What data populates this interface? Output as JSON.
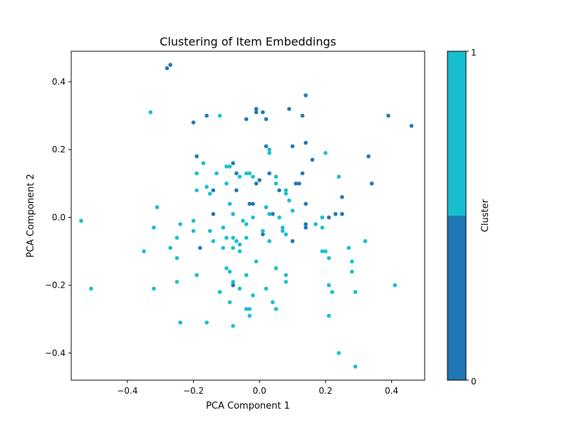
{
  "chart_data": {
    "type": "scatter",
    "title": "Clustering of Item Embeddings",
    "xlabel": "PCA Component 1",
    "ylabel": "PCA Component 2",
    "xlim": [
      -0.57,
      0.5
    ],
    "ylim": [
      -0.48,
      0.49
    ],
    "xticks": [
      -0.4,
      -0.2,
      0.0,
      0.2,
      0.4
    ],
    "xtick_labels": [
      "−0.4",
      "−0.2",
      "0.0",
      "0.2",
      "0.4"
    ],
    "yticks": [
      -0.4,
      -0.2,
      0.0,
      0.2,
      0.4
    ],
    "ytick_labels": [
      "−0.4",
      "−0.2",
      "0.0",
      "0.2",
      "0.4"
    ],
    "grid": false,
    "colorbar": {
      "label": "Cluster",
      "tick_labels": [
        "0",
        "1"
      ],
      "colors": [
        "#1f77b4",
        "#17becf"
      ]
    },
    "series": [
      {
        "cluster": 0,
        "color": "#1f77b4",
        "points": [
          [
            -0.28,
            0.44
          ],
          [
            -0.27,
            0.45
          ],
          [
            -0.2,
            0.28
          ],
          [
            -0.16,
            0.3
          ],
          [
            -0.04,
            0.29
          ],
          [
            -0.01,
            0.32
          ],
          [
            -0.01,
            0.31
          ],
          [
            0.01,
            0.31
          ],
          [
            0.02,
            0.29
          ],
          [
            0.09,
            0.32
          ],
          [
            0.13,
            0.3
          ],
          [
            0.14,
            0.36
          ],
          [
            0.39,
            0.3
          ],
          [
            0.46,
            0.27
          ],
          [
            -0.19,
            0.18
          ],
          [
            0.02,
            0.21
          ],
          [
            0.1,
            0.21
          ],
          [
            0.14,
            0.22
          ],
          [
            0.33,
            0.18
          ],
          [
            0.16,
            0.17
          ],
          [
            -0.08,
            0.16
          ],
          [
            -0.07,
            0.13
          ],
          [
            0.03,
            0.13
          ],
          [
            0.13,
            0.13
          ],
          [
            0.0,
            0.11
          ],
          [
            -0.01,
            0.1
          ],
          [
            0.11,
            0.1
          ],
          [
            0.12,
            0.1
          ],
          [
            0.34,
            0.1
          ],
          [
            -0.14,
            0.08
          ],
          [
            -0.07,
            0.08
          ],
          [
            0.06,
            0.08
          ],
          [
            0.25,
            0.06
          ],
          [
            -0.03,
            0.04
          ],
          [
            -0.02,
            0.04
          ],
          [
            0.14,
            0.04
          ],
          [
            -0.14,
            0.01
          ],
          [
            0.04,
            0.01
          ],
          [
            0.23,
            0.01
          ],
          [
            0.25,
            0.01
          ],
          [
            0.14,
            -0.02
          ],
          [
            0.21,
            0.0
          ],
          [
            0.14,
            -0.03
          ],
          [
            0.01,
            -0.05
          ],
          [
            0.1,
            -0.07
          ],
          [
            -0.18,
            -0.09
          ],
          [
            -0.08,
            -0.2
          ]
        ]
      },
      {
        "cluster": 1,
        "color": "#17becf",
        "points": [
          [
            -0.33,
            0.31
          ],
          [
            -0.12,
            0.3
          ],
          [
            0.03,
            0.19
          ],
          [
            0.03,
            0.2
          ],
          [
            0.2,
            0.19
          ],
          [
            -0.17,
            0.16
          ],
          [
            -0.1,
            0.15
          ],
          [
            -0.09,
            0.15
          ],
          [
            -0.19,
            0.13
          ],
          [
            -0.13,
            0.13
          ],
          [
            -0.06,
            0.12
          ],
          [
            -0.04,
            0.13
          ],
          [
            -0.03,
            0.13
          ],
          [
            -0.02,
            0.12
          ],
          [
            0.05,
            0.12
          ],
          [
            0.24,
            0.12
          ],
          [
            -0.1,
            0.1
          ],
          [
            -0.16,
            0.09
          ],
          [
            0.05,
            0.1
          ],
          [
            0.08,
            0.08
          ],
          [
            -0.19,
            0.08
          ],
          [
            -0.15,
            0.07
          ],
          [
            0.08,
            0.07
          ],
          [
            0.09,
            0.05
          ],
          [
            -0.31,
            0.03
          ],
          [
            -0.09,
            0.04
          ],
          [
            0.02,
            0.03
          ],
          [
            -0.08,
            0.01
          ],
          [
            0.03,
            0.01
          ],
          [
            0.06,
            0.0
          ],
          [
            0.1,
            0.02
          ],
          [
            0.19,
            0.0
          ],
          [
            0.19,
            0.0
          ],
          [
            -0.2,
            -0.01
          ],
          [
            -0.54,
            -0.01
          ],
          [
            -0.05,
            -0.01
          ],
          [
            -0.04,
            -0.02
          ],
          [
            -0.02,
            0.0
          ],
          [
            0.17,
            -0.02
          ],
          [
            -0.24,
            -0.02
          ],
          [
            -0.32,
            -0.03
          ],
          [
            -0.11,
            -0.03
          ],
          [
            0.07,
            -0.03
          ],
          [
            0.19,
            -0.03
          ],
          [
            -0.15,
            -0.04
          ],
          [
            -0.2,
            -0.04
          ],
          [
            0.07,
            -0.04
          ],
          [
            0.08,
            -0.05
          ],
          [
            0.01,
            -0.04
          ],
          [
            -0.25,
            -0.06
          ],
          [
            -0.1,
            -0.06
          ],
          [
            -0.08,
            -0.06
          ],
          [
            -0.07,
            -0.07
          ],
          [
            -0.04,
            -0.06
          ],
          [
            0.03,
            -0.07
          ],
          [
            -0.14,
            -0.07
          ],
          [
            -0.06,
            -0.08
          ],
          [
            0.32,
            -0.07
          ],
          [
            -0.27,
            -0.09
          ],
          [
            -0.11,
            -0.09
          ],
          [
            -0.08,
            -0.09
          ],
          [
            -0.06,
            -0.1
          ],
          [
            0.19,
            -0.1
          ],
          [
            0.2,
            -0.1
          ],
          [
            0.27,
            -0.09
          ],
          [
            -0.35,
            -0.1
          ],
          [
            -0.25,
            -0.12
          ],
          [
            0.21,
            -0.12
          ],
          [
            0.28,
            -0.13
          ],
          [
            -0.01,
            -0.13
          ],
          [
            0.05,
            -0.15
          ],
          [
            -0.1,
            -0.15
          ],
          [
            -0.09,
            -0.16
          ],
          [
            0.28,
            -0.16
          ],
          [
            -0.19,
            -0.17
          ],
          [
            -0.04,
            -0.17
          ],
          [
            0.08,
            -0.17
          ],
          [
            -0.25,
            -0.19
          ],
          [
            -0.08,
            -0.19
          ],
          [
            0.08,
            -0.19
          ],
          [
            0.41,
            -0.2
          ],
          [
            0.21,
            -0.2
          ],
          [
            -0.51,
            -0.21
          ],
          [
            -0.32,
            -0.21
          ],
          [
            -0.06,
            -0.21
          ],
          [
            0.02,
            -0.21
          ],
          [
            0.22,
            -0.22
          ],
          [
            0.29,
            -0.22
          ],
          [
            -0.12,
            -0.22
          ],
          [
            -0.02,
            -0.23
          ],
          [
            -0.09,
            -0.25
          ],
          [
            0.04,
            -0.25
          ],
          [
            -0.04,
            -0.27
          ],
          [
            0.05,
            -0.27
          ],
          [
            -0.03,
            -0.27
          ],
          [
            -0.03,
            -0.29
          ],
          [
            0.21,
            -0.29
          ],
          [
            -0.24,
            -0.31
          ],
          [
            -0.16,
            -0.31
          ],
          [
            -0.08,
            -0.32
          ],
          [
            0.24,
            -0.4
          ],
          [
            0.29,
            -0.44
          ]
        ]
      }
    ]
  }
}
